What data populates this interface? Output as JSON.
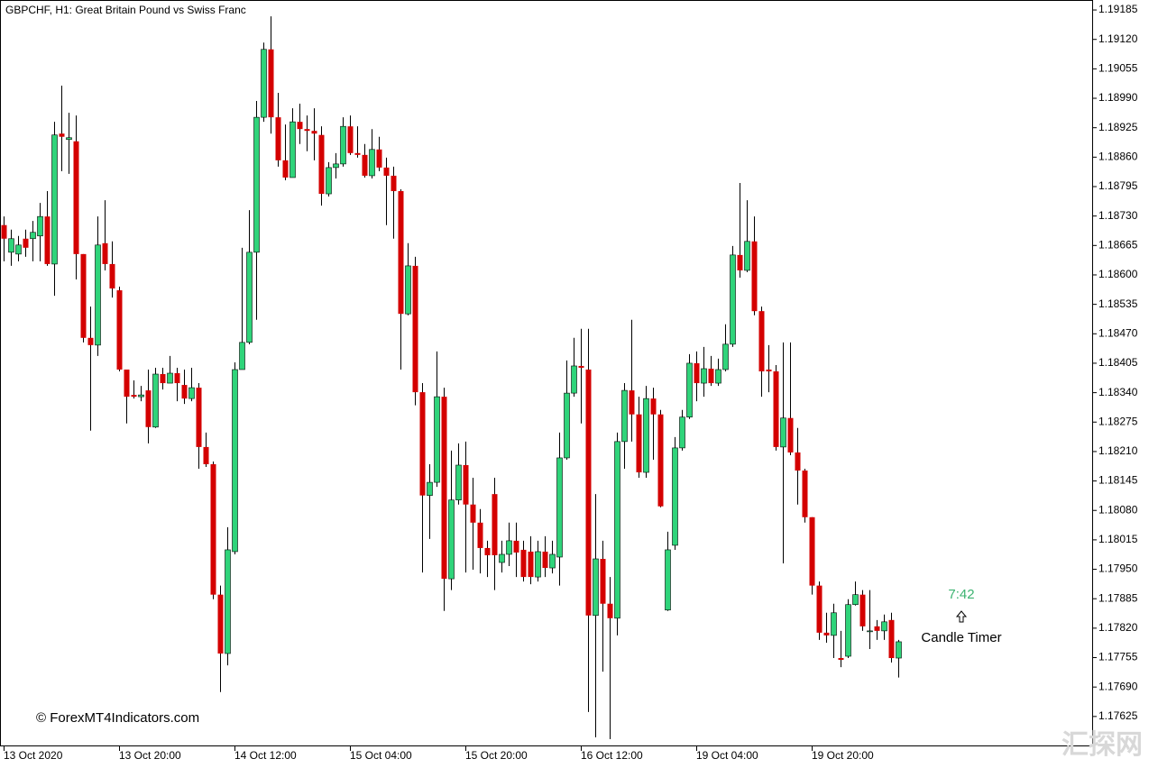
{
  "chart_data": {
    "type": "candlestick",
    "title": "GBPCHF, H1:  Great Britain Pound vs Swiss Franc",
    "up_color": "#2fd47a",
    "down_color": "#d40000",
    "wick_color": "#000000",
    "annotations": {
      "timer": "7:42",
      "timer_label": "Candle Timer",
      "watermark": "© ForexMT4Indicators.com",
      "corner_mark": "汇探网"
    },
    "ylim": [
      1.17559,
      1.19207
    ],
    "yticks": [
      1.19185,
      {
        "value": 1.1912,
        "label": "1.19120"
      },
      1.19055,
      {
        "value": 1.1899,
        "label": "1.18990"
      },
      1.18925,
      {
        "value": 1.1886,
        "label": "1.18860"
      },
      1.18795,
      {
        "value": 1.1873,
        "label": "1.18730"
      },
      1.18665,
      {
        "value": 1.186,
        "label": "1.18600"
      },
      1.18535,
      {
        "value": 1.1847,
        "label": "1.18470"
      },
      1.18405,
      {
        "value": 1.1834,
        "label": "1.18340"
      },
      1.18275,
      {
        "value": 1.1821,
        "label": "1.18210"
      },
      1.18145,
      {
        "value": 1.1808,
        "label": "1.18080"
      },
      1.18015,
      {
        "value": 1.1795,
        "label": "1.17950"
      },
      1.17885,
      {
        "value": 1.1782,
        "label": "1.17820"
      },
      1.17755,
      {
        "value": 1.1769,
        "label": "1.17690"
      },
      1.17625
    ],
    "categories": [
      "13 Oct 2020",
      null,
      null,
      null,
      null,
      null,
      null,
      null,
      null,
      null,
      null,
      null,
      null,
      null,
      null,
      null,
      "13 Oct 20:00",
      null,
      null,
      null,
      null,
      null,
      null,
      null,
      null,
      null,
      null,
      null,
      null,
      null,
      null,
      null,
      "14 Oct 12:00",
      null,
      null,
      null,
      null,
      null,
      null,
      null,
      null,
      null,
      null,
      null,
      null,
      null,
      null,
      null,
      "15 Oct 04:00",
      null,
      null,
      null,
      null,
      null,
      null,
      null,
      null,
      null,
      null,
      null,
      null,
      null,
      null,
      null,
      "15 Oct 20:00",
      null,
      null,
      null,
      null,
      null,
      null,
      null,
      null,
      null,
      null,
      null,
      null,
      null,
      null,
      null,
      "16 Oct 12:00",
      null,
      null,
      null,
      null,
      null,
      null,
      null,
      null,
      null,
      null,
      null,
      null,
      null,
      null,
      null,
      "19 Oct 04:00",
      null,
      null,
      null,
      null,
      null,
      null,
      null,
      null,
      null,
      null,
      null,
      null,
      null,
      null,
      null,
      "19 Oct 20:00",
      null,
      null,
      null,
      null,
      null,
      null,
      null,
      null,
      null,
      null,
      null,
      null
    ],
    "open": [
      1.1871,
      1.1865,
      1.18646,
      1.1868,
      1.1868,
      1.18686,
      1.18729,
      1.18624,
      1.18912,
      1.18899,
      1.18895,
      1.18646,
      1.18461,
      1.18445,
      1.1867,
      1.18624,
      1.18566,
      1.18391,
      1.18335,
      1.18331,
      1.18345,
      1.18264,
      1.18381,
      1.18361,
      1.18383,
      1.18357,
      1.18327,
      1.18351,
      1.1822,
      1.18182,
      1.17894,
      1.17764,
      1.17989,
      1.18391,
      1.18451,
      1.1865,
      1.18948,
      1.19098,
      1.18948,
      1.18853,
      1.18815,
      1.18938,
      1.18922,
      1.18918,
      1.18909,
      1.18779,
      1.18837,
      1.18845,
      1.18928,
      1.18869,
      1.18865,
      1.18819,
      1.18877,
      1.18837,
      1.18819,
      1.18785,
      1.18514,
      1.1862,
      1.18341,
      1.18113,
      1.18142,
      1.18331,
      1.17929,
      1.18103,
      1.1818,
      1.18093,
      1.18053,
      1.17997,
      1.18116,
      1.17965,
      1.17983,
      1.18013,
      1.17993,
      1.17989,
      1.17933,
      1.17989,
      1.17953,
      1.17977,
      1.18196,
      1.18339,
      1.18399,
      1.18391,
      1.17848,
      1.17973,
      1.17874,
      1.17842,
      1.18232,
      1.18345,
      1.18292,
      1.18164,
      1.18327,
      1.18292,
      1.1786,
      1.18003,
      1.18218,
      1.18286,
      1.18405,
      1.18361,
      1.18393,
      1.18361,
      1.18391,
      1.18447,
      1.18644,
      1.1861,
      1.18674,
      1.1852,
      1.18391,
      1.18387,
      1.1822,
      1.18284,
      1.18208,
      1.18168,
      1.18065,
      1.17914,
      1.1781,
      1.17804,
      1.17754,
      1.17758,
      1.17872,
      1.17894,
      1.17814,
      1.17824,
      1.17814,
      1.17838,
      1.17754
    ],
    "high": [
      1.18729,
      1.187,
      1.18686,
      1.187,
      1.18719,
      1.18759,
      1.18785,
      1.18938,
      1.19018,
      1.18958,
      1.18952,
      1.18646,
      1.1853,
      1.18729,
      1.18765,
      1.18674,
      1.18574,
      1.18391,
      1.18367,
      1.18355,
      1.18391,
      1.18395,
      1.18395,
      1.18421,
      1.18395,
      1.18391,
      1.18395,
      1.18361,
      1.18252,
      1.18188,
      1.17914,
      1.18043,
      1.18407,
      1.1866,
      1.18743,
      1.18984,
      1.19113,
      1.19171,
      1.19002,
      1.18932,
      1.18968,
      1.18978,
      1.18952,
      1.18968,
      1.18928,
      1.18849,
      1.18869,
      1.18948,
      1.18952,
      1.18928,
      1.18889,
      1.18922,
      1.18905,
      1.18859,
      1.18839,
      1.18789,
      1.1867,
      1.1864,
      1.18361,
      1.18182,
      1.18431,
      1.18351,
      1.18212,
      1.18228,
      1.18232,
      1.18152,
      1.18083,
      1.18013,
      1.18152,
      1.18013,
      1.18053,
      1.18053,
      1.18013,
      1.18023,
      1.18013,
      1.18023,
      1.18013,
      1.18252,
      1.18411,
      1.18461,
      1.18481,
      1.18481,
      1.18116,
      1.18013,
      1.17933,
      1.18252,
      1.18361,
      1.18501,
      1.18331,
      1.18355,
      1.18351,
      1.18302,
      1.18033,
      1.18242,
      1.18302,
      1.18425,
      1.18431,
      1.18441,
      1.18421,
      1.18415,
      1.18491,
      1.18664,
      1.18803,
      1.18765,
      1.18729,
      1.1853,
      1.18445,
      1.18401,
      1.18451,
      1.18451,
      1.18262,
      1.18172,
      1.18065,
      1.17923,
      1.17854,
      1.17874,
      1.17814,
      1.17884,
      1.17923,
      1.17904,
      1.17904,
      1.17838,
      1.1785,
      1.17854,
      1.17794
    ],
    "low": [
      1.1863,
      1.1862,
      1.1863,
      1.1864,
      1.1863,
      1.1863,
      1.1862,
      1.18554,
      1.18829,
      1.18823,
      1.1859,
      1.18451,
      1.18256,
      1.18421,
      1.1861,
      1.1855,
      1.18387,
      1.18272,
      1.18327,
      1.18321,
      1.18228,
      1.18262,
      1.18347,
      1.18361,
      1.18321,
      1.18315,
      1.18321,
      1.18172,
      1.18176,
      1.17884,
      1.17679,
      1.17738,
      1.17983,
      1.18391,
      1.18447,
      1.18501,
      1.18938,
      1.18912,
      1.18839,
      1.18809,
      1.18815,
      1.18889,
      1.18873,
      1.18853,
      1.18753,
      1.18773,
      1.18813,
      1.18839,
      1.18865,
      1.18859,
      1.18815,
      1.18813,
      1.18829,
      1.1871,
      1.1868,
      1.18391,
      1.18511,
      1.18312,
      1.17943,
      1.18017,
      1.18132,
      1.17858,
      1.17904,
      1.18093,
      1.17943,
      1.17949,
      1.17941,
      1.17933,
      1.17904,
      1.17943,
      1.17957,
      1.17933,
      1.17923,
      1.17917,
      1.17923,
      1.17933,
      1.17941,
      1.17914,
      1.18192,
      1.18331,
      1.18272,
      1.17635,
      1.17579,
      1.17724,
      1.17575,
      1.17804,
      1.18172,
      1.18232,
      1.18152,
      1.18152,
      1.18192,
      1.18087,
      1.17858,
      1.17993,
      1.18212,
      1.18282,
      1.18321,
      1.18331,
      1.18355,
      1.18355,
      1.18387,
      1.18441,
      1.18594,
      1.18606,
      1.18511,
      1.18331,
      1.18341,
      1.18212,
      1.17963,
      1.18202,
      1.18093,
      1.18053,
      1.17894,
      1.17794,
      1.17788,
      1.17754,
      1.17734,
      1.17754,
      1.1787,
      1.17814,
      1.17774,
      1.17794,
      1.17794,
      1.17744,
      1.17711
    ],
    "close": [
      1.1868,
      1.1868,
      1.18666,
      1.1866,
      1.18694,
      1.18729,
      1.18624,
      1.18909,
      1.18905,
      1.18903,
      1.18646,
      1.18461,
      1.18445,
      1.18666,
      1.18624,
      1.1857,
      1.18391,
      1.18331,
      1.18331,
      1.18335,
      1.18264,
      1.18381,
      1.18361,
      1.18383,
      1.18361,
      1.18327,
      1.18351,
      1.1822,
      1.18182,
      1.17894,
      1.17764,
      1.17993,
      1.18391,
      1.18451,
      1.1865,
      1.18948,
      1.19098,
      1.18948,
      1.18853,
      1.18815,
      1.18938,
      1.18922,
      1.18918,
      1.18912,
      1.18779,
      1.18837,
      1.18845,
      1.18928,
      1.18869,
      1.18865,
      1.18819,
      1.18877,
      1.18837,
      1.18819,
      1.18785,
      1.18514,
      1.1862,
      1.18341,
      1.18113,
      1.18142,
      1.18331,
      1.17929,
      1.18103,
      1.1818,
      1.18093,
      1.18053,
      1.17997,
      1.17981,
      1.17981,
      1.17983,
      1.18013,
      1.17987,
      1.17933,
      1.17933,
      1.17989,
      1.17953,
      1.17983,
      1.18196,
      1.18339,
      1.18399,
      1.18395,
      1.17848,
      1.17973,
      1.17874,
      1.17842,
      1.18232,
      1.18345,
      1.18292,
      1.18164,
      1.18327,
      1.18292,
      1.18089,
      1.17993,
      1.18218,
      1.18286,
      1.18405,
      1.18361,
      1.18393,
      1.18361,
      1.18391,
      1.18447,
      1.18644,
      1.1861,
      1.18674,
      1.1852,
      1.18387,
      1.18387,
      1.1822,
      1.18284,
      1.18208,
      1.18168,
      1.18065,
      1.17914,
      1.1781,
      1.17804,
      1.17854,
      1.1775,
      1.17872,
      1.17894,
      1.17824,
      1.17814,
      1.17814,
      1.17834,
      1.17754,
      1.1779
    ]
  }
}
